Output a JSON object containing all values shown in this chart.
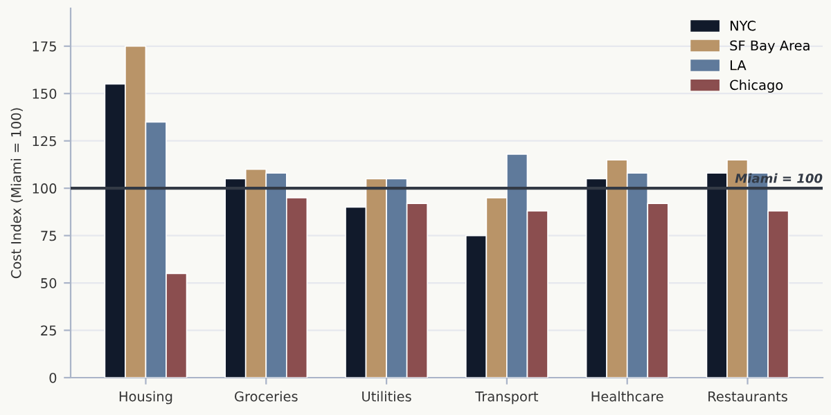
{
  "chart_data": {
    "type": "bar",
    "ylabel": "Cost Index (Miami = 100)",
    "categories": [
      "Housing",
      "Groceries",
      "Utilities",
      "Transport",
      "Healthcare",
      "Restaurants"
    ],
    "series": [
      {
        "name": "NYC",
        "color": "#111a2b",
        "values": [
          155,
          105,
          90,
          75,
          105,
          108
        ]
      },
      {
        "name": "SF Bay Area",
        "color": "#b99468",
        "values": [
          175,
          110,
          105,
          95,
          115,
          115
        ]
      },
      {
        "name": "LA",
        "color": "#5f7a9b",
        "values": [
          135,
          108,
          105,
          118,
          108,
          108
        ]
      },
      {
        "name": "Chicago",
        "color": "#8b4e4f",
        "values": [
          55,
          95,
          92,
          88,
          92,
          88
        ]
      }
    ],
    "ylim": [
      0,
      195
    ],
    "yticks": [
      0,
      25,
      50,
      75,
      100,
      125,
      150,
      175
    ],
    "grid": "y",
    "legend": "top right",
    "ref_lines": [
      {
        "axis": "y",
        "value": 100,
        "label": "Miami = 100",
        "color": "#333a45",
        "line_style": "solid"
      }
    ]
  }
}
